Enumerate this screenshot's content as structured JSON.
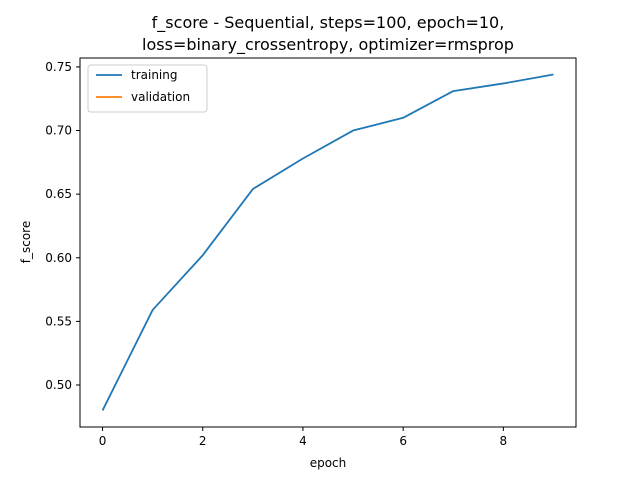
{
  "chart_data": {
    "type": "line",
    "title_line1": "f_score - Sequential, steps=100, epoch=10,",
    "title_line2": "loss=binary_crossentropy, optimizer=rmsprop",
    "xlabel": "epoch",
    "ylabel": "f_score",
    "xlim": [
      -0.45,
      9.45
    ],
    "ylim": [
      0.467,
      0.757
    ],
    "xticks": [
      0,
      2,
      4,
      6,
      8
    ],
    "yticks": [
      0.5,
      0.55,
      0.6,
      0.65,
      0.7,
      0.75
    ],
    "ytick_labels": [
      "0.50",
      "0.55",
      "0.60",
      "0.65",
      "0.70",
      "0.75"
    ],
    "legend_position": "top-left",
    "series": [
      {
        "name": "training",
        "color": "#1f77b4",
        "x": [
          0,
          1,
          2,
          3,
          4,
          5,
          6,
          7,
          8,
          9
        ],
        "values": [
          0.48,
          0.559,
          0.602,
          0.654,
          0.678,
          0.7,
          0.71,
          0.731,
          0.737,
          0.744
        ]
      },
      {
        "name": "validation",
        "color": "#ff7f0e",
        "x": [],
        "values": []
      }
    ]
  }
}
